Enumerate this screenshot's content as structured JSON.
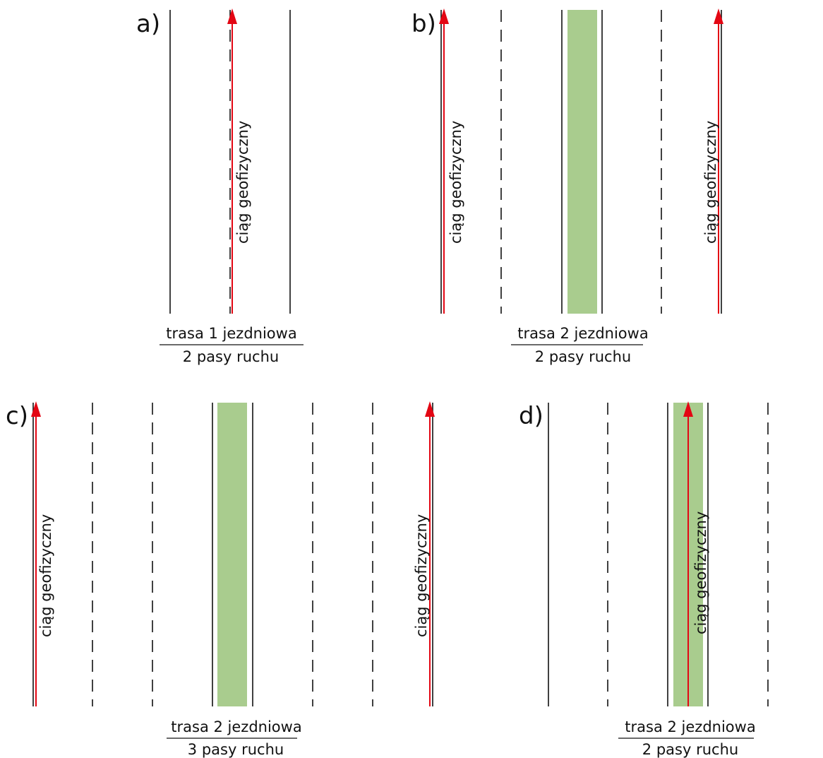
{
  "panels": {
    "a": {
      "label": "a)",
      "route_label": "ciąg geofizyczny",
      "caption_top": "trasa 1 jezdniowa",
      "caption_bottom": "2 pasy ruchu"
    },
    "b": {
      "label": "b)",
      "route_label_left": "ciąg geofizyczny",
      "route_label_right": "ciąg geofizyczny",
      "caption_top": "trasa 2 jezdniowa",
      "caption_bottom": "2 pasy ruchu"
    },
    "c": {
      "label": "c)",
      "route_label_left": "ciąg geofizyczny",
      "route_label_right": "ciąg geofizyczny",
      "caption_top": "trasa 2 jezdniowa",
      "caption_bottom": "3 pasy ruchu"
    },
    "d": {
      "label": "d)",
      "route_label": "ciąg geofizyczny",
      "caption_top": "trasa 2 jezdniowa",
      "caption_bottom": "2 pasy ruchu"
    }
  },
  "colors": {
    "route": "#e30613",
    "median": "#a9cc8e",
    "line": "#111111"
  }
}
